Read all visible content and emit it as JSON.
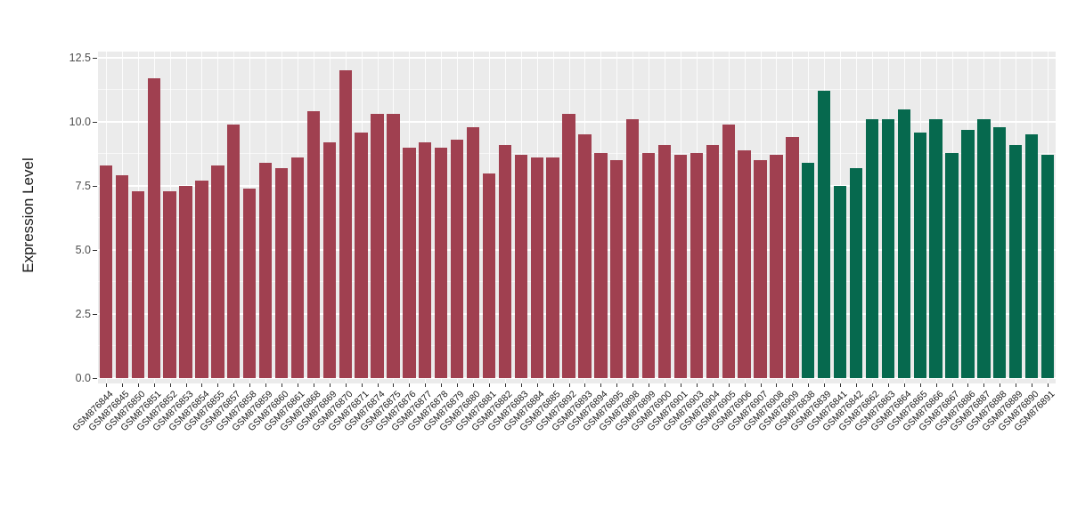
{
  "chart_data": {
    "type": "bar",
    "title": "",
    "xlabel": "",
    "ylabel": "Expression Level",
    "ylim": [
      0,
      13
    ],
    "ytick_values": [
      0,
      2.5,
      5,
      7.5,
      10,
      12.5
    ],
    "ytick_labels": [
      "0.0",
      "2.5",
      "5.0",
      "7.5",
      "10.0",
      "12.5"
    ],
    "minor_ytick_values": [
      1.25,
      3.75,
      6.25,
      8.75,
      11.25
    ],
    "grid": "on",
    "legend": "none",
    "panel_background": "#EBEBEB",
    "figure_background": "#FFFFFF",
    "group_split_index": 44,
    "colors": {
      "left_group": "#A04050",
      "right_group": "#06694E"
    },
    "categories": [
      "GSM876844",
      "GSM876845",
      "GSM876850",
      "GSM876851",
      "GSM876852",
      "GSM876853",
      "GSM876854",
      "GSM876855",
      "GSM876857",
      "GSM876858",
      "GSM876859",
      "GSM876860",
      "GSM876861",
      "GSM876868",
      "GSM876869",
      "GSM876870",
      "GSM876871",
      "GSM876874",
      "GSM876875",
      "GSM876876",
      "GSM876877",
      "GSM876878",
      "GSM876879",
      "GSM876880",
      "GSM876881",
      "GSM876882",
      "GSM876883",
      "GSM876884",
      "GSM876885",
      "GSM876892",
      "GSM876893",
      "GSM876894",
      "GSM876895",
      "GSM876898",
      "GSM876899",
      "GSM876900",
      "GSM876901",
      "GSM876903",
      "GSM876904",
      "GSM876905",
      "GSM876906",
      "GSM876907",
      "GSM876908",
      "GSM876909",
      "GSM876838",
      "GSM876839",
      "GSM876841",
      "GSM876842",
      "GSM876862",
      "GSM876863",
      "GSM876864",
      "GSM876865",
      "GSM876866",
      "GSM876867",
      "GSM876886",
      "GSM876887",
      "GSM876888",
      "GSM876889",
      "GSM876890",
      "GSM876891"
    ],
    "values": [
      8.3,
      7.9,
      7.3,
      11.7,
      7.3,
      7.5,
      7.7,
      8.3,
      9.9,
      7.4,
      8.4,
      8.2,
      8.6,
      10.4,
      9.2,
      12.0,
      9.6,
      10.3,
      10.3,
      9.0,
      9.2,
      9.0,
      9.3,
      9.8,
      8.0,
      9.1,
      8.7,
      8.6,
      8.6,
      10.3,
      9.5,
      8.8,
      8.5,
      10.1,
      8.8,
      9.1,
      8.7,
      8.8,
      9.1,
      9.9,
      8.9,
      8.5,
      8.7,
      9.4,
      8.4,
      11.2,
      7.5,
      8.2,
      10.1,
      10.1,
      10.5,
      9.6,
      10.1,
      8.8,
      9.7,
      10.1,
      9.8,
      9.1,
      9.5,
      8.7
    ]
  }
}
